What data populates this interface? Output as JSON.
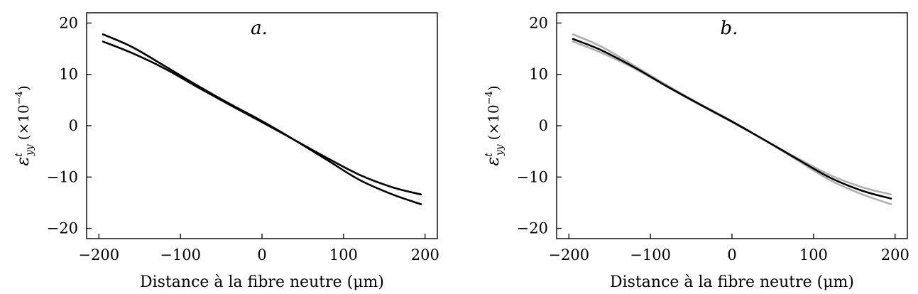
{
  "chart_data": [
    {
      "type": "line",
      "panel_label": "a.",
      "xlabel": "Distance à la fibre neutre (μm)",
      "ylabel": "ε",
      "ylabel_superscript": "t",
      "ylabel_subscript": "yy",
      "ylabel_unit": "(×10",
      "ylabel_unit_exp": "−4",
      "ylabel_unit_close": ")",
      "xlim": [
        -215,
        215
      ],
      "ylim": [
        -22,
        22
      ],
      "xticks": [
        -200,
        -100,
        0,
        100,
        200
      ],
      "xtick_labels": [
        "−200",
        "−100",
        "0",
        "100",
        "200"
      ],
      "yticks": [
        -20,
        -10,
        0,
        10,
        20
      ],
      "ytick_labels": [
        "−20",
        "−10",
        "0",
        "10",
        "20"
      ],
      "grid": false,
      "series": [
        {
          "color": "#000000",
          "x": [
            -195,
            -160,
            -120,
            -80,
            -40,
            0,
            40,
            80,
            120,
            160,
            195
          ],
          "y": [
            17.8,
            15.4,
            11.7,
            7.9,
            4.3,
            0.9,
            -2.8,
            -6.7,
            -10.6,
            -13.4,
            -15.3
          ]
        },
        {
          "color": "#000000",
          "x": [
            -195,
            -160,
            -120,
            -80,
            -40,
            0,
            40,
            80,
            120,
            160,
            195
          ],
          "y": [
            16.4,
            14.2,
            11.2,
            7.6,
            4.1,
            0.7,
            -2.8,
            -6.3,
            -9.6,
            -12.0,
            -13.4
          ]
        }
      ]
    },
    {
      "type": "line",
      "panel_label": "b.",
      "xlabel": "Distance à la fibre neutre (μm)",
      "ylabel": "ε",
      "ylabel_superscript": "t",
      "ylabel_subscript": "yy",
      "ylabel_unit": "(×10",
      "ylabel_unit_exp": "−4",
      "ylabel_unit_close": ")",
      "xlim": [
        -215,
        215
      ],
      "ylim": [
        -22,
        22
      ],
      "xticks": [
        -200,
        -100,
        0,
        100,
        200
      ],
      "xtick_labels": [
        "−200",
        "−100",
        "0",
        "100",
        "200"
      ],
      "yticks": [
        -20,
        -10,
        0,
        10,
        20
      ],
      "ytick_labels": [
        "−20",
        "−10",
        "0",
        "10",
        "20"
      ],
      "grid": false,
      "series": [
        {
          "color": "#b0b0b0",
          "x": [
            -195,
            -160,
            -120,
            -80,
            -40,
            0,
            40,
            80,
            120,
            160,
            195
          ],
          "y": [
            17.8,
            15.4,
            11.7,
            7.9,
            4.3,
            0.9,
            -2.8,
            -6.7,
            -10.6,
            -13.4,
            -15.3
          ]
        },
        {
          "color": "#b0b0b0",
          "x": [
            -195,
            -160,
            -120,
            -80,
            -40,
            0,
            40,
            80,
            120,
            160,
            195
          ],
          "y": [
            16.4,
            14.2,
            11.2,
            7.6,
            4.1,
            0.7,
            -2.8,
            -6.3,
            -9.6,
            -12.0,
            -13.4
          ]
        },
        {
          "color": "#000000",
          "x": [
            -195,
            -160,
            -120,
            -80,
            -40,
            0,
            40,
            80,
            120,
            160,
            195
          ],
          "y": [
            16.9,
            14.7,
            11.4,
            7.7,
            4.2,
            0.8,
            -2.8,
            -6.5,
            -10.1,
            -12.7,
            -14.2
          ]
        }
      ]
    }
  ]
}
